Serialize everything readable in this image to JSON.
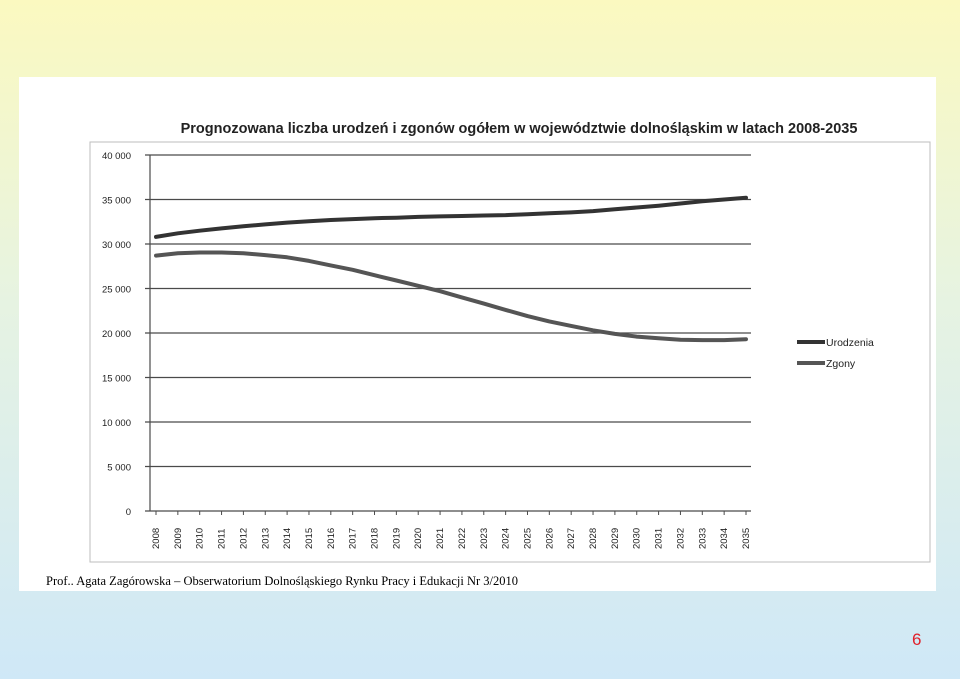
{
  "caption": "Prof.. Agata Zagórowska – Obserwatorium Dolnośląskiego Rynku Pracy i Edukacji Nr 3/2010",
  "page_number": "6",
  "chart_data": {
    "type": "line",
    "title": "Prognozowana liczba urodzeń i zgonów ogółem w województwie dolnośląskim w latach 2008-2035",
    "xlabel": "",
    "ylabel": "",
    "x": [
      "2008",
      "2009",
      "2010",
      "2011",
      "2012",
      "2013",
      "2014",
      "2015",
      "2016",
      "2017",
      "2018",
      "2019",
      "2020",
      "2021",
      "2022",
      "2023",
      "2024",
      "2025",
      "2026",
      "2027",
      "2028",
      "2029",
      "2030",
      "2031",
      "2032",
      "2033",
      "2034",
      "2035"
    ],
    "y_ticks": [
      0,
      5000,
      10000,
      15000,
      20000,
      25000,
      30000,
      35000,
      40000
    ],
    "y_tick_labels": [
      "0",
      "5 000",
      "10 000",
      "15 000",
      "20 000",
      "25 000",
      "30 000",
      "35 000",
      "40 000"
    ],
    "ylim": [
      0,
      40000
    ],
    "grid": true,
    "legend_position": "right",
    "series": [
      {
        "name": "Urodzenia",
        "color": "#333333",
        "values": [
          30800,
          31200,
          31500,
          31750,
          32000,
          32200,
          32400,
          32550,
          32700,
          32800,
          32900,
          32950,
          33050,
          33100,
          33150,
          33200,
          33250,
          33350,
          33450,
          33550,
          33700,
          33900,
          34100,
          34300,
          34550,
          34800,
          35000,
          35200
        ]
      },
      {
        "name": "Zgony",
        "color": "#555555",
        "values": [
          28700,
          28950,
          29050,
          29050,
          28950,
          28750,
          28500,
          28100,
          27600,
          27100,
          26500,
          25900,
          25300,
          24700,
          24000,
          23300,
          22600,
          21900,
          21300,
          20800,
          20300,
          19900,
          19600,
          19400,
          19250,
          19200,
          19200,
          19300
        ]
      }
    ]
  }
}
